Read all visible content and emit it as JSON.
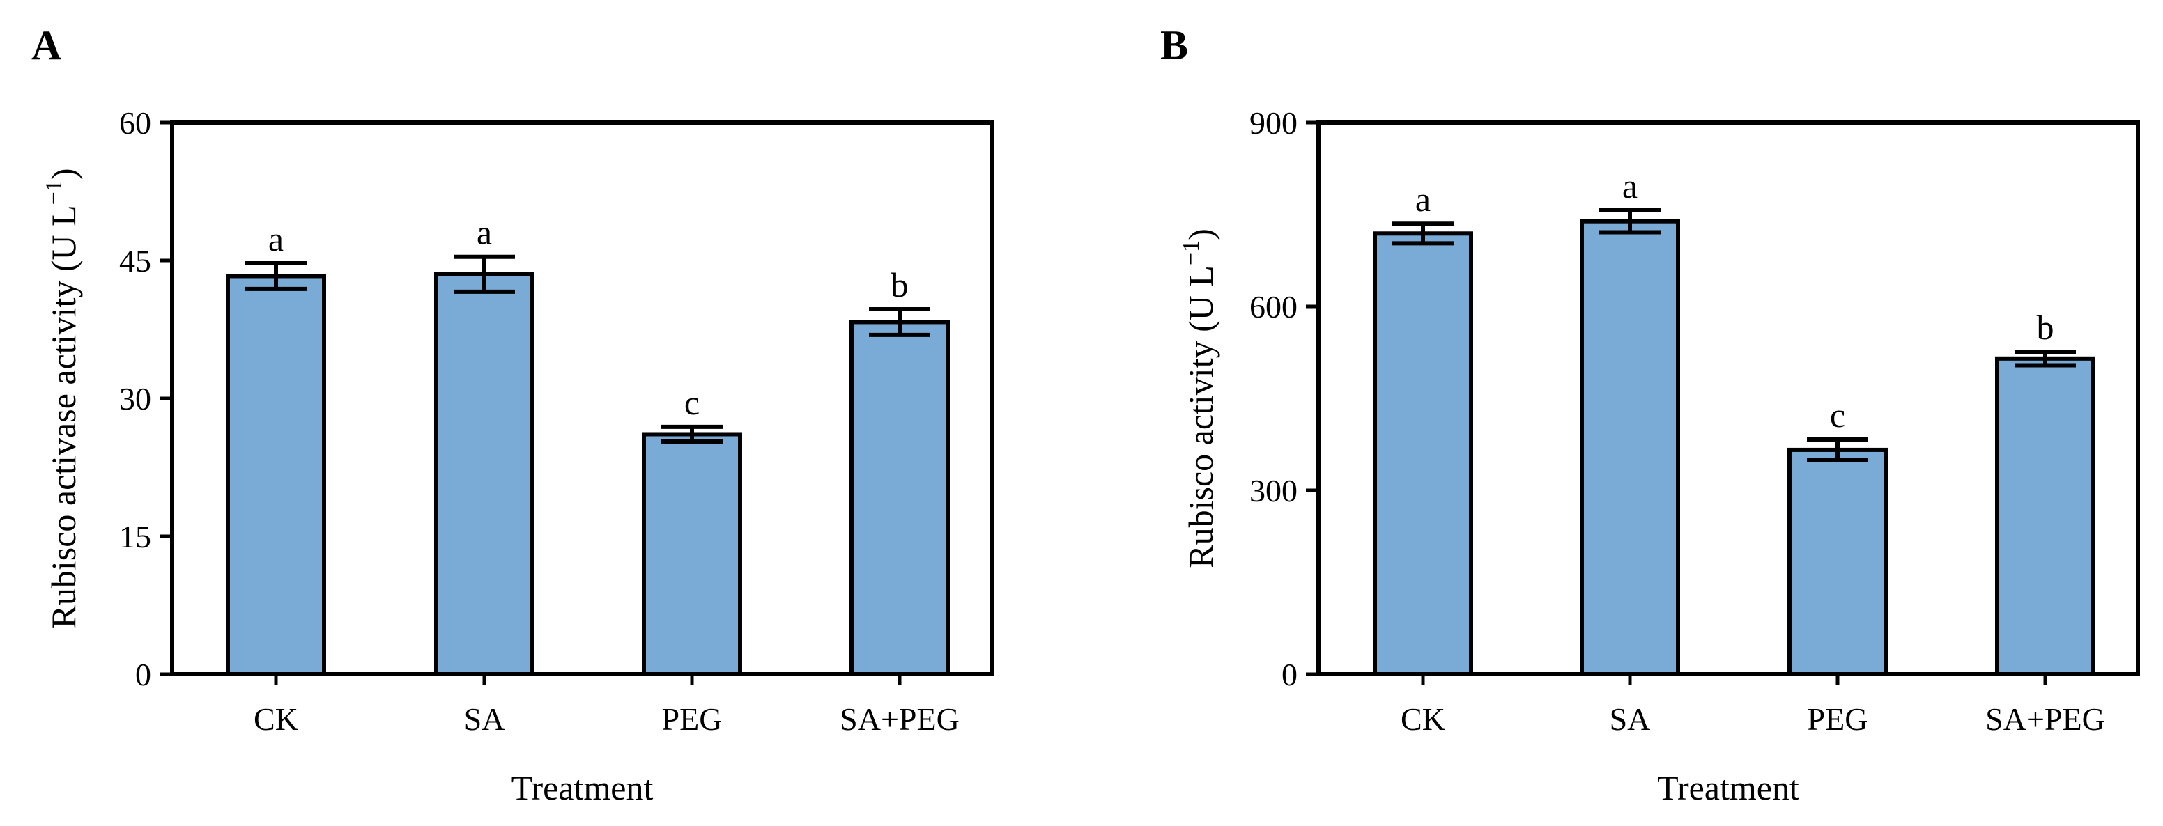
{
  "chart_data": [
    {
      "panel": "A",
      "type": "bar",
      "title": "",
      "categories": [
        "CK",
        "SA",
        "PEG",
        "SA+PEG"
      ],
      "values": [
        43.3,
        43.5,
        26.1,
        38.3
      ],
      "errors": [
        1.4,
        1.9,
        0.8,
        1.4
      ],
      "significance": [
        "a",
        "a",
        "c",
        "b"
      ],
      "xlabel": "Treatment",
      "ylabel": "Rubisco activase activity (U L",
      "ylabel_sup": "−1",
      "ylabel_close": ")",
      "ylim": [
        0,
        60
      ],
      "yticks": [
        0,
        15,
        30,
        45,
        60
      ],
      "bar_color": "#7aabd6",
      "grid": false
    },
    {
      "panel": "B",
      "type": "bar",
      "title": "",
      "categories": [
        "CK",
        "SA",
        "PEG",
        "SA+PEG"
      ],
      "values": [
        719,
        739,
        366,
        515
      ],
      "errors": [
        16,
        18,
        17,
        11
      ],
      "significance": [
        "a",
        "a",
        "c",
        "b"
      ],
      "xlabel": "Treatment",
      "ylabel": "Rubisco activity (U L",
      "ylabel_sup": "−1",
      "ylabel_close": ")",
      "ylim": [
        0,
        900
      ],
      "yticks": [
        0,
        300,
        600,
        900
      ],
      "bar_color": "#7aabd6",
      "grid": false
    }
  ]
}
